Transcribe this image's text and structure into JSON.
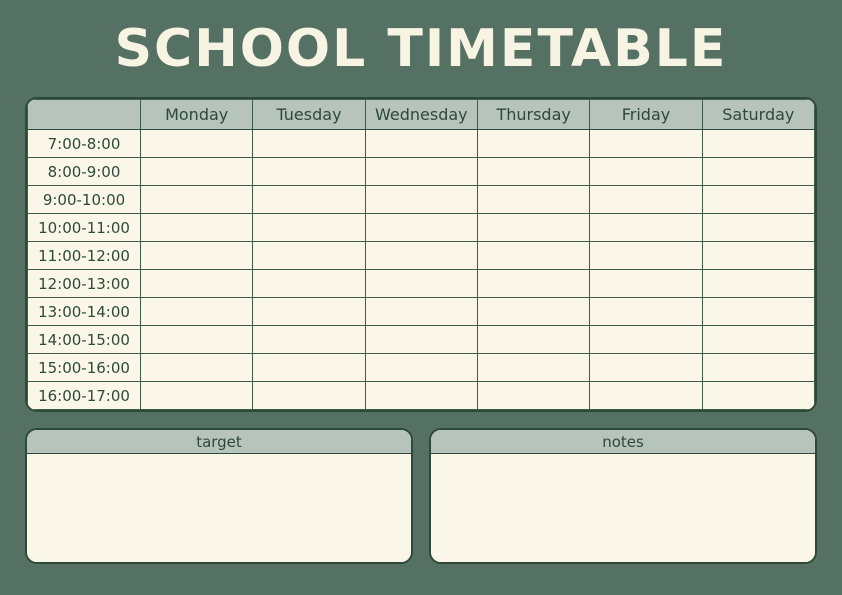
{
  "page": {
    "title": "SCHOOL TIMETABLE"
  },
  "timetable": {
    "corner_label": "",
    "days": [
      "Monday",
      "Tuesday",
      "Wednesday",
      "Thursday",
      "Friday",
      "Saturday"
    ],
    "time_slots": [
      "7:00-8:00",
      "8:00-9:00",
      "9:00-10:00",
      "10:00-11:00",
      "11:00-12:00",
      "12:00-13:00",
      "13:00-14:00",
      "14:00-15:00",
      "15:00-16:00",
      "16:00-17:00"
    ],
    "cell_value": ""
  },
  "panels": {
    "target": {
      "label": "target",
      "content": ""
    },
    "notes": {
      "label": "notes",
      "content": ""
    }
  },
  "colors": {
    "background": "#557163",
    "header_fill": "#b7c4bd",
    "cell_fill": "#fbf7e8",
    "ink": "#2d493a",
    "grid_line": "#3f5c4c",
    "title_text": "#f8f4e3"
  }
}
